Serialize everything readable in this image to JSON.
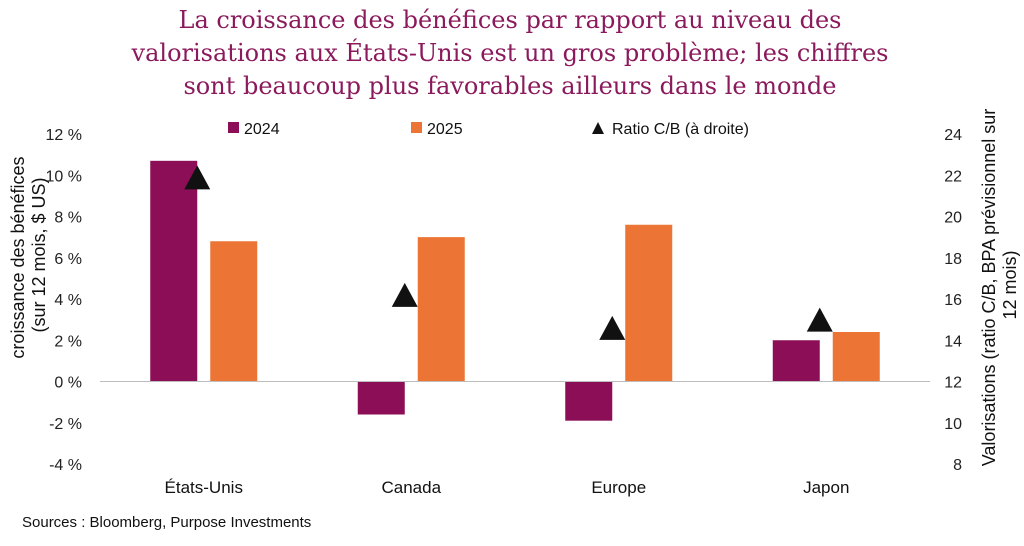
{
  "chart_data": {
    "type": "bar",
    "title_lines": [
      "La croissance des bénéfices par rapport au niveau des",
      "valorisations aux États-Unis est un gros problème; les chiffres",
      "sont beaucoup plus favorables ailleurs dans le monde"
    ],
    "categories": [
      "États-Unis",
      "Canada",
      "Europe",
      "Japon"
    ],
    "series": [
      {
        "name": "2024",
        "axis": "left",
        "color": "#8b0e57",
        "values": [
          10.7,
          -1.6,
          -1.9,
          2.0
        ]
      },
      {
        "name": "2025",
        "axis": "left",
        "color": "#ec7535",
        "values": [
          6.8,
          7.0,
          7.6,
          2.4
        ]
      },
      {
        "name": "Ratio C/B (à droite)",
        "axis": "right",
        "marker": "triangle",
        "color": "#111111",
        "values": [
          21.9,
          16.2,
          14.6,
          15.0
        ]
      }
    ],
    "y_left": {
      "label_lines": [
        "croissance des bénéfices",
        "(sur 12 mois, $ US)"
      ],
      "range": [
        -4,
        12
      ],
      "ticks": [
        "12 %",
        "10 %",
        "8 %",
        "6 %",
        "4 %",
        "2 %",
        "0 %",
        "-2 %",
        "-4 %"
      ]
    },
    "y_right": {
      "label_lines": [
        "Valorisations (ratio C/B, BPA prévisionnel sur",
        "12 mois)"
      ],
      "range": [
        8,
        24
      ],
      "ticks": [
        "24",
        "22",
        "20",
        "18",
        "16",
        "14",
        "12",
        "10",
        "8"
      ]
    },
    "legend": [
      "2024",
      "2025",
      "Ratio C/B (à droite)"
    ],
    "legend_position": "top"
  },
  "source": "Sources : Bloomberg, Purpose Investments"
}
